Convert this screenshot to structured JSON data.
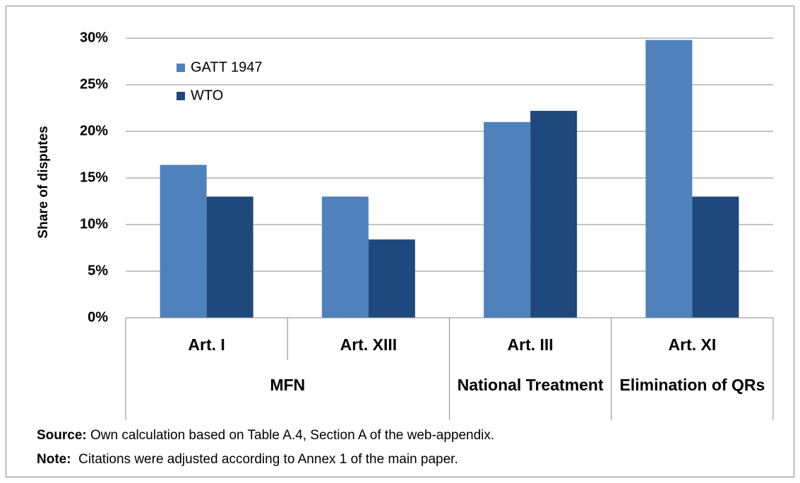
{
  "chart_data": {
    "type": "bar",
    "y_label": "Share of disputes",
    "categories": [
      "Art. I",
      "Art. XIII",
      "Art. III",
      "Art. XI"
    ],
    "groups": [
      "MFN",
      null,
      "National Treatment",
      "Elimination of QRs"
    ],
    "series": [
      {
        "name": "GATT  1947",
        "color": "#4f81bd",
        "values": [
          16.4,
          13.0,
          21.0,
          29.8
        ]
      },
      {
        "name": "WTO",
        "color": "#1f497d",
        "values": [
          13.0,
          8.4,
          22.2,
          13.0
        ]
      }
    ],
    "ylim": [
      0,
      30
    ],
    "yticks": [
      {
        "value": 0,
        "label": "0%"
      },
      {
        "value": 5,
        "label": "5%"
      },
      {
        "value": 10,
        "label": "10%"
      },
      {
        "value": 15,
        "label": "15%"
      },
      {
        "value": 20,
        "label": "20%"
      },
      {
        "value": 25,
        "label": "25%"
      },
      {
        "value": 30,
        "label": "30%"
      }
    ],
    "grid": true,
    "legend": "top-left",
    "source": {
      "label": "Source:",
      "text": "Own calculation based on Table  A.4, Section A of the web-appendix."
    },
    "note": {
      "label": "Note:",
      "text": "Citations were adjusted according to Annex 1 of the main paper."
    }
  }
}
